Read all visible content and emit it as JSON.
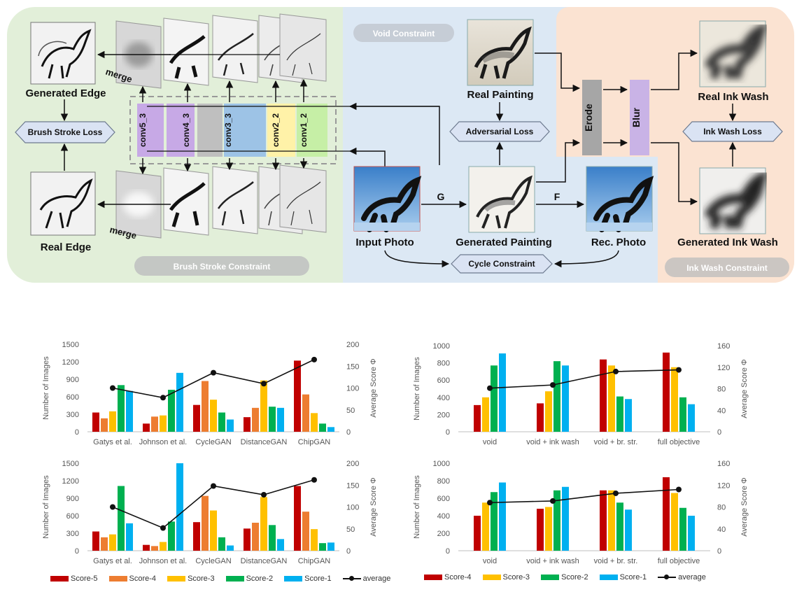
{
  "diagram": {
    "sections": {
      "brush_stroke": "Brush Stroke Constraint",
      "void": "Void Constraint",
      "ink_wash": "Ink Wash Constraint"
    },
    "labels": {
      "generated_edge": "Generated Edge",
      "real_edge": "Real Edge",
      "merge_top": "merge",
      "merge_bottom": "merge",
      "brush_stroke_loss": "Brush Stroke Loss",
      "input_photo": "Input Photo",
      "generated_painting": "Generated Painting",
      "rec_photo": "Rec. Photo",
      "real_painting": "Real Painting",
      "adversarial_loss": "Adversarial Loss",
      "cycle_constraint": "Cycle Constraint",
      "g": "G",
      "f": "F",
      "erode": "Erode",
      "blur": "Blur",
      "real_ink_wash": "Real Ink Wash",
      "generated_ink_wash": "Generated Ink Wash",
      "ink_wash_loss": "Ink Wash Loss"
    },
    "conv_layers": [
      "conv5_3",
      "conv4_3",
      "conv3_3",
      "conv2_2",
      "conv1_2"
    ],
    "colors": {
      "green_bg": "#e2efd9",
      "blue_bg": "#dce8f4",
      "orange_bg": "#fbe3d2",
      "hex_fill": "#dae3f3",
      "erode": "#a6a6a6",
      "blur": "#c9b3e6",
      "layer_purple": "#c7a9e6",
      "layer_gray": "#bfbfbf",
      "layer_blue": "#9dc3e6",
      "layer_yellow": "#fff2a8",
      "layer_green": "#c6efa6"
    }
  },
  "chart_data": [
    {
      "type": "bar",
      "categories": [
        "Gatys et al.",
        "Johnson et al.",
        "CycleGAN",
        "DistanceGAN",
        "ChipGAN"
      ],
      "series": [
        {
          "name": "Score-5",
          "color": "#c00000",
          "values": [
            330,
            140,
            460,
            250,
            1220
          ]
        },
        {
          "name": "Score-4",
          "color": "#ed7d31",
          "values": [
            230,
            260,
            870,
            410,
            640
          ]
        },
        {
          "name": "Score-3",
          "color": "#ffc000",
          "values": [
            350,
            280,
            550,
            880,
            320
          ]
        },
        {
          "name": "Score-2",
          "color": "#00b050",
          "values": [
            800,
            720,
            330,
            430,
            140
          ]
        },
        {
          "name": "Score-1",
          "color": "#00b0f0",
          "values": [
            700,
            1010,
            210,
            410,
            80
          ]
        }
      ],
      "average": {
        "name": "average",
        "values": [
          100,
          78,
          135,
          110,
          165
        ]
      },
      "ylabel": "Number of Images",
      "y2label": "Average Score Φ",
      "ylim": [
        0,
        1500
      ],
      "yticks": [
        "0",
        "300",
        "600",
        "900",
        "1200",
        "1500"
      ],
      "y2lim": [
        0,
        200
      ],
      "y2ticks": [
        "0",
        "50",
        "100",
        "150",
        "200"
      ]
    },
    {
      "type": "bar",
      "categories": [
        "Gatys et al.",
        "Johnson et al.",
        "CycleGAN",
        "DistanceGAN",
        "ChipGAN"
      ],
      "series": [
        {
          "name": "Score-5",
          "color": "#c00000",
          "values": [
            330,
            100,
            490,
            380,
            1110
          ]
        },
        {
          "name": "Score-4",
          "color": "#ed7d31",
          "values": [
            230,
            80,
            940,
            480,
            670
          ]
        },
        {
          "name": "Score-3",
          "color": "#ffc000",
          "values": [
            280,
            150,
            690,
            920,
            370
          ]
        },
        {
          "name": "Score-2",
          "color": "#00b050",
          "values": [
            1110,
            500,
            230,
            440,
            130
          ]
        },
        {
          "name": "Score-1",
          "color": "#00b0f0",
          "values": [
            470,
            1500,
            90,
            200,
            140
          ]
        }
      ],
      "average": {
        "name": "average",
        "values": [
          100,
          52,
          148,
          128,
          162
        ]
      },
      "ylabel": "Number of Images",
      "y2label": "Average Score Φ",
      "ylim": [
        0,
        1500
      ],
      "yticks": [
        "0",
        "300",
        "600",
        "900",
        "1200",
        "1500"
      ],
      "y2lim": [
        0,
        200
      ],
      "y2ticks": [
        "0",
        "50",
        "100",
        "150",
        "200"
      ]
    },
    {
      "type": "bar",
      "categories": [
        "void",
        "void + ink wash",
        "void + br. str.",
        "full objective"
      ],
      "series": [
        {
          "name": "Score-4",
          "color": "#c00000",
          "values": [
            310,
            330,
            840,
            920
          ]
        },
        {
          "name": "Score-3",
          "color": "#ffc000",
          "values": [
            400,
            470,
            770,
            750
          ]
        },
        {
          "name": "Score-2",
          "color": "#00b050",
          "values": [
            770,
            820,
            410,
            400
          ]
        },
        {
          "name": "Score-1",
          "color": "#00b0f0",
          "values": [
            910,
            770,
            380,
            320
          ]
        }
      ],
      "average": {
        "name": "average",
        "values": [
          81,
          87,
          112,
          115
        ]
      },
      "ylabel": "Number of Images",
      "y2label": "Average Score Φ",
      "ylim": [
        0,
        1000
      ],
      "yticks": [
        "0",
        "200",
        "400",
        "600",
        "800",
        "1000"
      ],
      "y2lim": [
        0,
        160
      ],
      "y2ticks": [
        "0",
        "40",
        "80",
        "120",
        "160"
      ]
    },
    {
      "type": "bar",
      "categories": [
        "void",
        "void + ink wash",
        "void + br. str.",
        "full objective"
      ],
      "series": [
        {
          "name": "Score-4",
          "color": "#c00000",
          "values": [
            400,
            480,
            690,
            840
          ]
        },
        {
          "name": "Score-3",
          "color": "#ffc000",
          "values": [
            550,
            500,
            690,
            660
          ]
        },
        {
          "name": "Score-2",
          "color": "#00b050",
          "values": [
            670,
            690,
            550,
            490
          ]
        },
        {
          "name": "Score-1",
          "color": "#00b0f0",
          "values": [
            780,
            730,
            470,
            400
          ]
        }
      ],
      "average": {
        "name": "average",
        "values": [
          88,
          91,
          105,
          112
        ]
      },
      "ylabel": "Number of Images",
      "y2label": "Average Score Φ",
      "ylim": [
        0,
        1000
      ],
      "yticks": [
        "0",
        "200",
        "400",
        "600",
        "800",
        "1000"
      ],
      "y2lim": [
        0,
        160
      ],
      "y2ticks": [
        "0",
        "40",
        "80",
        "120",
        "160"
      ]
    }
  ],
  "legends": {
    "left": [
      {
        "name": "Score-5",
        "color": "#c00000"
      },
      {
        "name": "Score-4",
        "color": "#ed7d31"
      },
      {
        "name": "Score-3",
        "color": "#ffc000"
      },
      {
        "name": "Score-2",
        "color": "#00b050"
      },
      {
        "name": "Score-1",
        "color": "#00b0f0"
      },
      {
        "name": "average",
        "color": "#111111"
      }
    ],
    "right": [
      {
        "name": "Score-4",
        "color": "#c00000"
      },
      {
        "name": "Score-3",
        "color": "#ffc000"
      },
      {
        "name": "Score-2",
        "color": "#00b050"
      },
      {
        "name": "Score-1",
        "color": "#00b0f0"
      },
      {
        "name": "average",
        "color": "#111111"
      }
    ]
  }
}
